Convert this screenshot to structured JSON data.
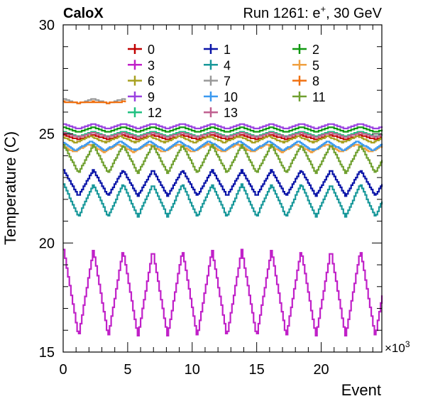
{
  "header": {
    "left_label": "CaloX",
    "right_label": "Run 1261: e",
    "right_sup": "+",
    "right_suffix": ", 30 GeV"
  },
  "chart_data": {
    "type": "line",
    "title": "",
    "xlabel": "Event",
    "ylabel": "Temperature (C)",
    "x_multiplier_label": "×10",
    "x_multiplier_exp": "3",
    "xlim": [
      0,
      24.7
    ],
    "ylim": [
      15,
      30
    ],
    "x_ticks": [
      0,
      5,
      10,
      15,
      20
    ],
    "y_ticks": [
      15,
      20,
      25,
      30
    ],
    "grid": false,
    "legend": {
      "placement": "top",
      "columns": 3
    },
    "oscillation_period": 2.3,
    "series": [
      {
        "name": "0",
        "color": "#c00000",
        "base": 24.85,
        "amp": 0.1,
        "phase": 0.0
      },
      {
        "name": "1",
        "color": "#0a14a8",
        "base": 22.75,
        "amp": 0.6,
        "phase": 0.0
      },
      {
        "name": "2",
        "color": "#109810",
        "base": 25.2,
        "amp": 0.12,
        "phase": 0.0
      },
      {
        "name": "3",
        "color": "#c020c8",
        "base": 17.7,
        "amp": 2.0,
        "phase": 0.0
      },
      {
        "name": "4",
        "color": "#18989a",
        "base": 21.95,
        "amp": 0.75,
        "phase": 0.0
      },
      {
        "name": "5",
        "color": "#f0a040",
        "base": 24.35,
        "amp": 0.18,
        "phase": 0.15
      },
      {
        "name": "6",
        "color": "#a8a020",
        "base": 24.75,
        "amp": 0.15,
        "phase": 0.1
      },
      {
        "name": "7",
        "color": "#999999",
        "base": 26.5,
        "amp": 0.1,
        "phase": 0.0,
        "x_end": 4.8
      },
      {
        "name": "8",
        "color": "#f07010",
        "base": 26.45,
        "amp": 0.03,
        "phase": 0.0,
        "x_end": 4.8
      },
      {
        "name": "9",
        "color": "#9a40e0",
        "base": 25.35,
        "amp": 0.12,
        "phase": 0.0
      },
      {
        "name": "10",
        "color": "#3c9af0",
        "base": 24.45,
        "amp": 0.22,
        "phase": 0.1
      },
      {
        "name": "11",
        "color": "#70a030",
        "base": 23.85,
        "amp": 0.65,
        "phase": 0.0
      },
      {
        "name": "12",
        "color": "#20c080",
        "base": 25.0,
        "amp": 0.12,
        "phase": 0.0
      },
      {
        "name": "13",
        "color": "#c06090",
        "base": 24.95,
        "amp": 0.1,
        "phase": 0.0
      }
    ]
  }
}
